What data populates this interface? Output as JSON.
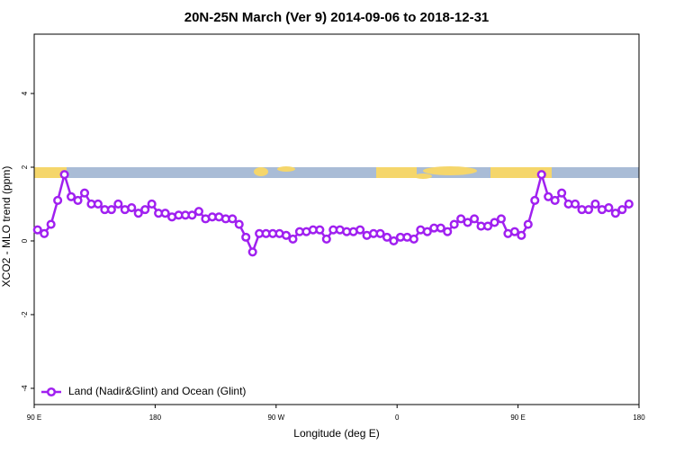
{
  "chart_data": {
    "type": "line",
    "title": "20N-25N March (Ver 9)   2014-09-06 to 2018-12-31",
    "x_label": "Longitude (deg E)",
    "y_label": "XCO2 - MLO trend (ppm)",
    "x": [
      92.5,
      97.5,
      102.5,
      107.5,
      112.5,
      117.5,
      122.5,
      127.5,
      132.5,
      137.5,
      142.5,
      147.5,
      152.5,
      157.5,
      162.5,
      167.5,
      172.5,
      177.5,
      182.5,
      187.5,
      192.5,
      197.5,
      202.5,
      207.5,
      212.5,
      217.5,
      222.5,
      227.5,
      232.5,
      237.5,
      242.5,
      247.5,
      252.5,
      257.5,
      262.5,
      267.5,
      272.5,
      277.5,
      282.5,
      287.5,
      292.5,
      297.5,
      302.5,
      307.5,
      312.5,
      317.5,
      322.5,
      327.5,
      332.5,
      337.5,
      342.5,
      347.5,
      352.5,
      357.5,
      362.5,
      367.5,
      372.5,
      377.5,
      382.5,
      387.5,
      392.5,
      397.5,
      402.5,
      407.5,
      412.5,
      417.5,
      422.5,
      427.5,
      432.5,
      437.5,
      442.5,
      447.5,
      452.5,
      457.5,
      462.5,
      467.5,
      472.5,
      477.5,
      482.5,
      487.5,
      492.5,
      497.5,
      502.5,
      507.5,
      512.5,
      517.5,
      522.5,
      527.5,
      532.5
    ],
    "series": [
      {
        "name": "Land (Nadir&Glint) and Ocean (Glint)",
        "color": "#a020f0",
        "values": [
          0.3,
          0.2,
          0.45,
          1.1,
          1.8,
          1.2,
          1.1,
          1.3,
          1.0,
          1.0,
          0.85,
          0.85,
          1.0,
          0.85,
          0.9,
          0.75,
          0.85,
          1.0,
          0.75,
          0.75,
          0.65,
          0.7,
          0.7,
          0.7,
          0.8,
          0.6,
          0.65,
          0.65,
          0.6,
          0.6,
          0.45,
          0.1,
          -0.3,
          0.2,
          0.2,
          0.2,
          0.2,
          0.15,
          0.05,
          0.25,
          0.25,
          0.3,
          0.3,
          0.05,
          0.3,
          0.3,
          0.25,
          0.25,
          0.3,
          0.15,
          0.2,
          0.2,
          0.1,
          0.0,
          0.1,
          0.1,
          0.05,
          0.3,
          0.25,
          0.35,
          0.35,
          0.25,
          0.45,
          0.6,
          0.5,
          0.6,
          0.4,
          0.4,
          0.5,
          0.6,
          0.2,
          0.25,
          0.15,
          0.45,
          1.1,
          1.8,
          1.2,
          1.1,
          1.3,
          1.0,
          1.0,
          0.85,
          0.85,
          1.0,
          0.85,
          0.9,
          0.75,
          0.85,
          1.0
        ]
      }
    ],
    "xlim": [
      90,
      540
    ],
    "xticks": [
      {
        "value": 90,
        "label": "90 E"
      },
      180,
      {
        "value": 270,
        "label": "90 W"
      },
      {
        "value": 360,
        "label": "0"
      },
      {
        "value": 450,
        "label": "90 E"
      },
      {
        "value": 540,
        "label": "180"
      }
    ],
    "ylim": [
      -4.44,
      5.61
    ],
    "yticks": [
      -4,
      -2,
      0,
      2,
      4
    ],
    "legend": "bottom-left"
  }
}
